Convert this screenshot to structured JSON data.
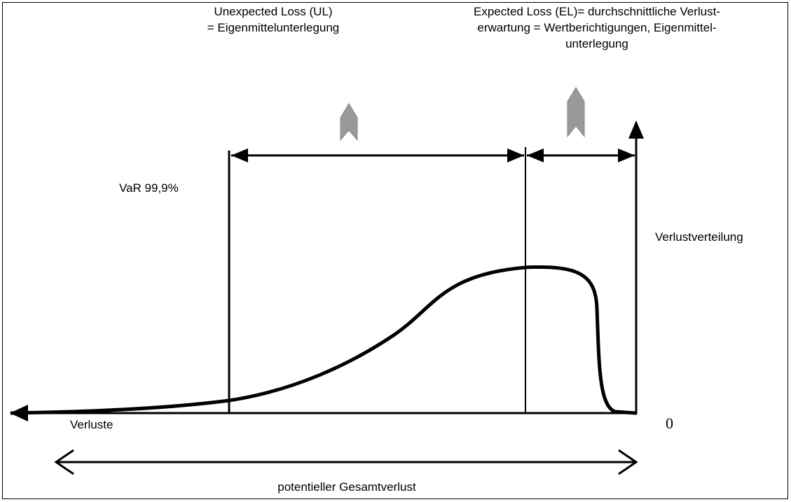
{
  "labels": {
    "unexpected_loss": [
      "Unexpected Loss (UL)",
      "= Eigenmittelunterlegung"
    ],
    "expected_loss": [
      "Expected Loss (EL)= durchschnittliche Verlust-",
      "erwartung = Wertberichtigungen, Eigenmittel-",
      "unterlegung"
    ],
    "var": "VaR 99,9%",
    "distribution": "Verlustverteilung",
    "zero": "0",
    "losses": "Verluste",
    "total": "potentieller Gesamtverlust"
  }
}
